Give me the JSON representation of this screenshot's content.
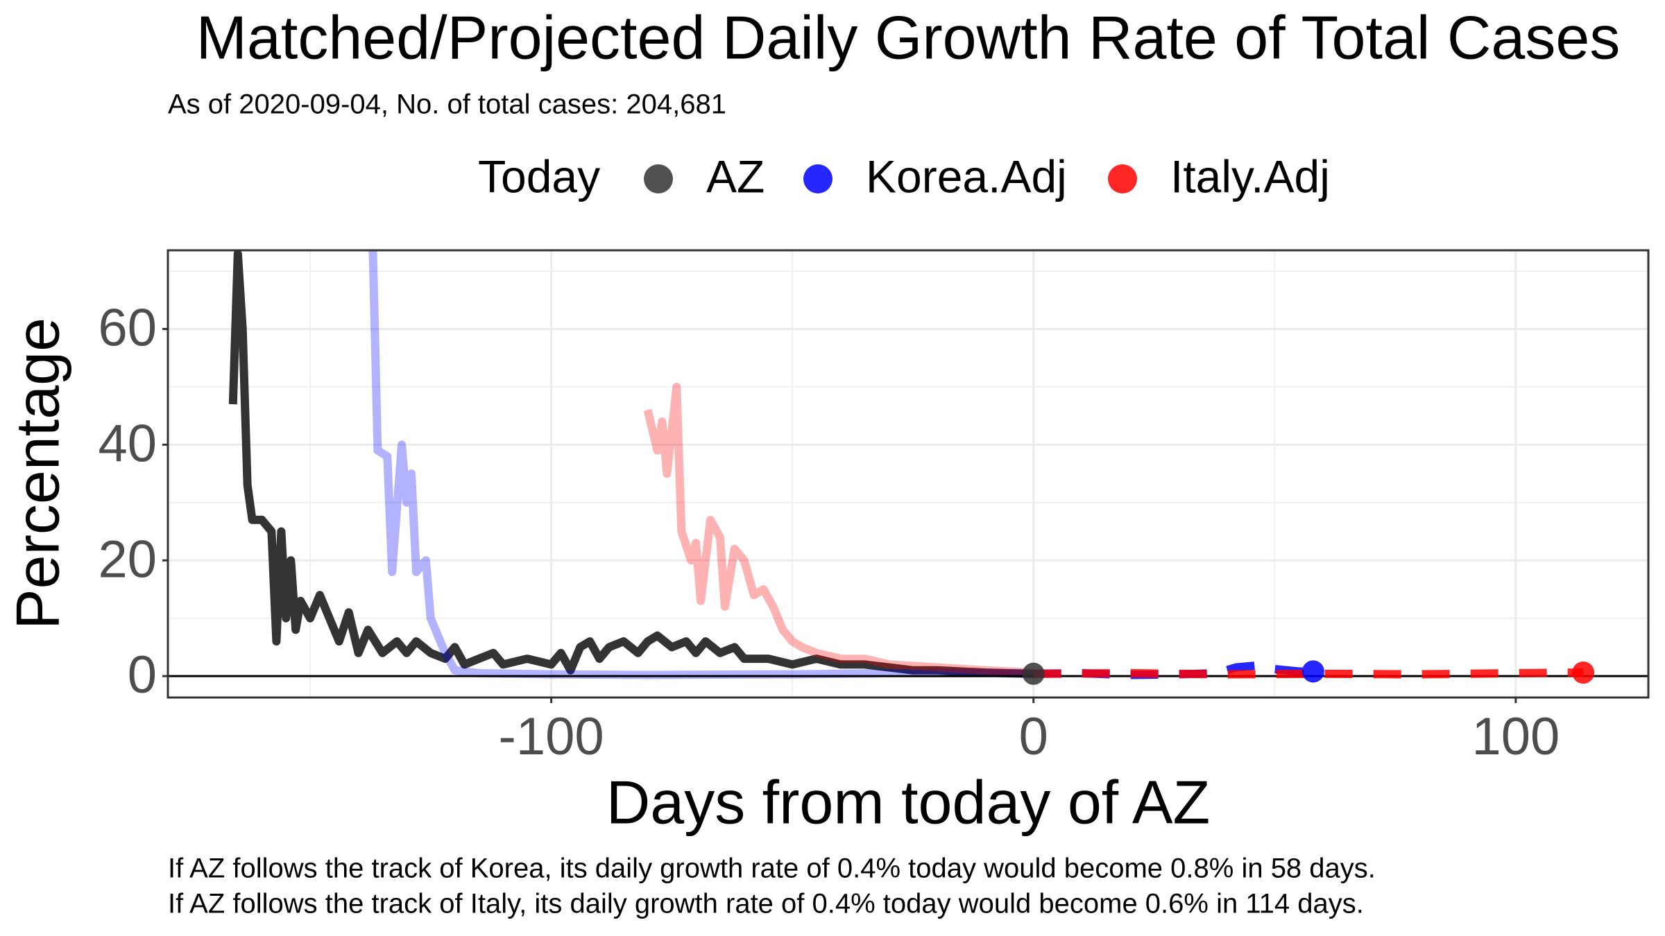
{
  "chart_data": {
    "type": "line",
    "title": "Matched/Projected Daily Growth Rate of Total Cases",
    "subtitle": "As of 2020-09-04, No. of total cases: 204,681",
    "legend_title": "Today",
    "x_label": "Days from today of AZ",
    "y_label": "Percentage",
    "caption": [
      "If AZ follows the track of Korea, its daily growth rate of 0.4% today would become 0.8% in 58 days.",
      "If AZ follows the track of Italy, its daily growth rate of 0.4% today would become 0.6% in 114 days."
    ],
    "xlim": [
      -179.5,
      127.5
    ],
    "ylim": [
      -3.7,
      73.6
    ],
    "xticks": [
      -100,
      0,
      100
    ],
    "yticks": [
      0,
      20,
      40,
      60
    ],
    "grid": true,
    "hline": 0,
    "legend": "top",
    "series": [
      {
        "name": "AZ",
        "color": "#333333",
        "faded": false,
        "x": [
          -166,
          -165,
          -164,
          -163,
          -162,
          -160,
          -158,
          -157,
          -156,
          -155,
          -154,
          -153,
          -152,
          -150,
          -148,
          -146,
          -144,
          -142,
          -140,
          -138,
          -135,
          -132,
          -130,
          -128,
          -125,
          -122,
          -120,
          -118,
          -115,
          -112,
          -110,
          -105,
          -100,
          -98,
          -96,
          -94,
          -92,
          -90,
          -88,
          -85,
          -82,
          -80,
          -78,
          -75,
          -72,
          -70,
          -68,
          -65,
          -62,
          -60,
          -55,
          -50,
          -45,
          -40,
          -35,
          -30,
          -25,
          -20,
          -15,
          -10,
          -5,
          0
        ],
        "values": [
          47,
          73,
          60,
          33,
          27,
          27,
          25,
          6,
          25,
          10,
          20,
          8,
          13,
          10,
          14,
          10,
          6,
          11,
          4,
          8,
          4,
          6,
          4,
          6,
          4,
          3,
          5,
          2,
          3,
          4,
          2,
          3,
          2,
          4,
          1,
          5,
          6,
          3,
          5,
          6,
          4,
          6,
          7,
          5,
          6,
          4,
          6,
          4,
          5,
          3,
          3,
          2,
          3,
          2,
          2,
          1.5,
          1,
          1,
          0.8,
          0.6,
          0.5,
          0.4
        ],
        "marker": {
          "x": 0,
          "y": 0.4
        }
      },
      {
        "name": "Korea.Adj",
        "color": "#0000ff",
        "faded": true,
        "x": [
          -137,
          -136,
          -134,
          -133,
          -131,
          -130,
          -129,
          -128,
          -126,
          -125,
          -122,
          -120,
          -115,
          -100,
          -80,
          -50,
          -30,
          -10,
          0
        ],
        "values": [
          74,
          39,
          38,
          18,
          40,
          30,
          35,
          18,
          20,
          10,
          4,
          1,
          0.5,
          0.3,
          0.2,
          0.3,
          0.5,
          0.5,
          0.4
        ],
        "projection": {
          "x": [
            0,
            10,
            20,
            30,
            38,
            42,
            46,
            50,
            55,
            58
          ],
          "values": [
            0.4,
            0.5,
            0.2,
            0.3,
            0.5,
            1.5,
            1.8,
            1.2,
            0.8,
            0.8
          ]
        },
        "marker": {
          "x": 58,
          "y": 0.8
        }
      },
      {
        "name": "Italy.Adj",
        "color": "#ff0000",
        "faded": true,
        "x": [
          -80,
          -78,
          -77,
          -76,
          -74,
          -73,
          -71,
          -70,
          -69,
          -67,
          -65,
          -64,
          -62,
          -60,
          -58,
          -56,
          -54,
          -52,
          -50,
          -48,
          -45,
          -40,
          -35,
          -30,
          -20,
          -10,
          0
        ],
        "values": [
          46,
          39,
          44,
          35,
          50,
          25,
          20,
          23,
          13,
          27,
          24,
          12,
          22,
          20,
          14,
          15,
          12,
          8,
          6,
          5,
          4,
          3,
          3,
          2,
          1.5,
          1,
          0.6
        ],
        "projection": {
          "x": [
            0,
            20,
            40,
            60,
            80,
            100,
            114
          ],
          "values": [
            0.4,
            0.5,
            0.3,
            0.4,
            0.3,
            0.5,
            0.6
          ]
        },
        "marker": {
          "x": 114,
          "y": 0.6
        }
      }
    ]
  }
}
